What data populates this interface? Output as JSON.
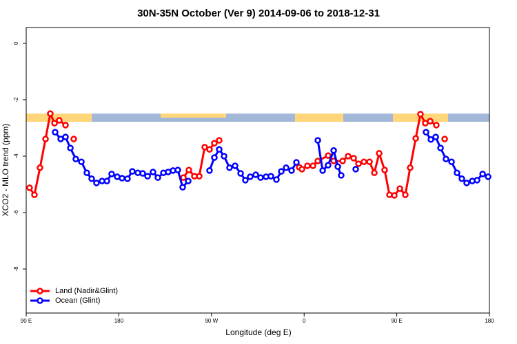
{
  "chart_data": {
    "type": "line",
    "title": "30N-35N October (Ver 9)   2014-09-06 to 2018-12-31",
    "x_label": "Longitude (deg E)",
    "y_label": "XCO2 - MLO trend (ppm)",
    "xlim": [
      90,
      540
    ],
    "xticks": [
      {
        "value": 90,
        "label": "90 E"
      },
      180,
      {
        "value": 270,
        "label": "90 W"
      },
      {
        "value": 360,
        "label": "0"
      },
      {
        "value": 450,
        "label": "90 E"
      },
      {
        "value": 540,
        "label": "180"
      }
    ],
    "ylim": [
      -9.56,
      0.56
    ],
    "yticks": [
      0,
      -2,
      -4,
      -6,
      -8
    ],
    "legend": "bottom-left",
    "series": [
      {
        "name": "Land (Nadir&Glint)",
        "color": "#ff0000",
        "x": [
          93.3,
          98,
          103.4,
          108.8,
          113.4,
          117.5,
          122.1,
          128.2,
          132,
          136.2,
          200,
          242.7,
          248,
          253.4,
          258.1,
          263.4,
          268.1,
          272.8,
          277.5,
          320,
          355.2,
          357.9,
          363.2,
          368.6,
          373.3,
          383.3,
          388.7,
          397.4,
          402.7,
          408.1,
          412.8,
          418.1,
          423.5,
          428.2,
          432.9,
          438.2,
          442.9,
          447.6,
          453,
          458.3,
          463,
          468.4,
          473,
          477.7,
          482.4,
          488.4,
          492,
          496.5
        ],
        "values": [
          -5.12,
          -5.37,
          -4.41,
          -3.39,
          -2.49,
          -2.83,
          -2.73,
          -2.9,
          null,
          -3.39,
          null,
          -4.76,
          -4.49,
          -4.71,
          -4.71,
          -3.68,
          -3.76,
          -3.54,
          -3.44,
          null,
          -4.39,
          -4.46,
          -4.34,
          -4.34,
          -4.17,
          -3.98,
          -4.17,
          -4.17,
          -4.0,
          -4.07,
          -4.27,
          -4.2,
          -4.2,
          -4.59,
          -3.9,
          -4.49,
          -5.37,
          -5.39,
          -5.15,
          -5.37,
          -4.41,
          -3.37,
          -2.51,
          -2.83,
          -2.76,
          -2.9,
          null,
          -3.39
        ]
      },
      {
        "name": "Ocean (Glint)",
        "color": "#0000ff",
        "x": [
          118.1,
          123.5,
          128.2,
          132.9,
          138.2,
          143.6,
          148.9,
          153.6,
          158.3,
          163.7,
          168.4,
          173,
          178.4,
          183.1,
          188.4,
          193.1,
          198.5,
          203.2,
          207.9,
          213.2,
          217.9,
          223.3,
          227.9,
          232.6,
          237.3,
          242,
          247.4,
          255,
          268.1,
          272.8,
          277.5,
          282.2,
          287.5,
          292.9,
          298.3,
          302.9,
          307.6,
          313,
          317.7,
          323,
          327.7,
          333.1,
          337.8,
          342.5,
          347.8,
          352.5,
          365,
          373.3,
          378,
          383.3,
          388.7,
          392.7,
          396,
          405,
          410.1,
          450,
          478.4,
          483.1,
          487.8,
          492.5,
          497.8,
          503.2,
          508.5,
          513.2,
          517.9,
          523.3,
          528,
          533.4,
          538.7
        ],
        "values": [
          -3.15,
          -3.39,
          -3.32,
          -3.71,
          -4.1,
          -4.2,
          -4.59,
          -4.8,
          -4.95,
          -4.88,
          -4.88,
          -4.63,
          -4.73,
          -4.78,
          -4.8,
          -4.54,
          -4.59,
          -4.61,
          -4.71,
          -4.56,
          -4.76,
          -4.59,
          -4.56,
          -4.51,
          -4.49,
          -5.1,
          -4.88,
          null,
          -4.51,
          -4.05,
          -3.76,
          -4.0,
          -4.41,
          -4.34,
          -4.61,
          -4.85,
          -4.73,
          -4.66,
          -4.76,
          -4.73,
          -4.71,
          -4.83,
          -4.54,
          -4.41,
          -4.51,
          -4.22,
          null,
          -3.44,
          -4.51,
          -4.32,
          -3.8,
          -4.37,
          -4.68,
          null,
          -4.46,
          null,
          -3.15,
          -3.41,
          -3.32,
          -3.71,
          -4.1,
          -4.2,
          -4.59,
          -4.8,
          -4.95,
          -4.88,
          -4.85,
          -4.63,
          -4.73
        ]
      }
    ]
  }
}
